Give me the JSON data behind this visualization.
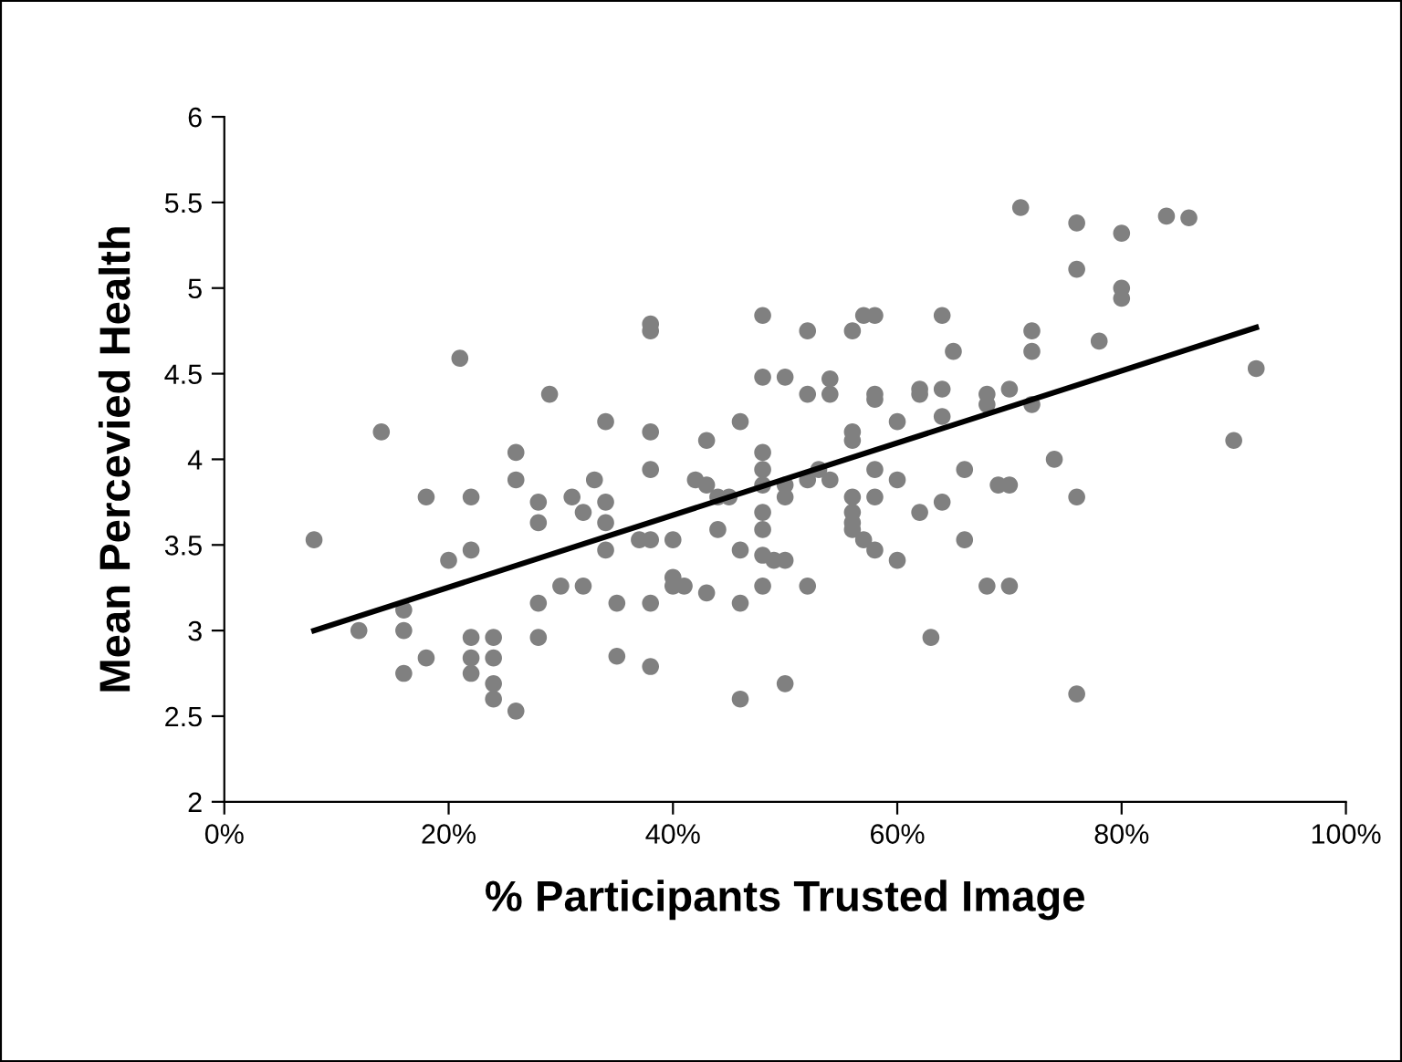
{
  "chart_data": {
    "type": "scatter",
    "xlabel": "% Participants Trusted Image",
    "ylabel": "Mean Percevied Health",
    "xlim": [
      0,
      100
    ],
    "ylim": [
      2,
      6
    ],
    "xticks": [
      {
        "value": 0,
        "label": "0%"
      },
      {
        "value": 20,
        "label": "20%"
      },
      {
        "value": 40,
        "label": "40%"
      },
      {
        "value": 60,
        "label": "60%"
      },
      {
        "value": 80,
        "label": "80%"
      },
      {
        "value": 100,
        "label": "100%"
      }
    ],
    "yticks": [
      2,
      2.5,
      3,
      3.5,
      4,
      4.5,
      5,
      5.5,
      6
    ],
    "grid": false,
    "legend": false,
    "series": [
      {
        "type": "scatter",
        "marker": "circle",
        "color": "#808080",
        "x": [
          8,
          12,
          14,
          16,
          16,
          16,
          18,
          18,
          20,
          21,
          22,
          22,
          22,
          22,
          22,
          24,
          24,
          24,
          24,
          26,
          26,
          26,
          28,
          28,
          28,
          28,
          29,
          30,
          31,
          32,
          32,
          33,
          34,
          34,
          34,
          34,
          35,
          35,
          37,
          38,
          38,
          38,
          38,
          38,
          38,
          38,
          40,
          40,
          40,
          41,
          42,
          43,
          43,
          43,
          44,
          44,
          45,
          46,
          46,
          46,
          46,
          48,
          48,
          48,
          48,
          48,
          48,
          48,
          48,
          48,
          49,
          50,
          50,
          50,
          50,
          50,
          52,
          52,
          52,
          52,
          53,
          54,
          54,
          54,
          56,
          56,
          56,
          56,
          56,
          56,
          56,
          57,
          57,
          58,
          58,
          58,
          58,
          58,
          58,
          60,
          60,
          60,
          62,
          62,
          62,
          63,
          64,
          64,
          64,
          64,
          65,
          66,
          66,
          68,
          68,
          68,
          69,
          70,
          70,
          70,
          71,
          72,
          72,
          72,
          74,
          76,
          76,
          76,
          76,
          78,
          80,
          80,
          80,
          84,
          86,
          90,
          92
        ],
        "values": [
          3.53,
          3.0,
          4.16,
          3.12,
          3.0,
          2.75,
          3.78,
          2.84,
          3.41,
          4.59,
          3.78,
          3.47,
          2.96,
          2.84,
          2.75,
          2.96,
          2.84,
          2.69,
          2.6,
          4.04,
          3.88,
          2.53,
          3.75,
          3.63,
          3.16,
          2.96,
          4.38,
          3.26,
          3.78,
          3.69,
          3.26,
          3.88,
          4.22,
          3.75,
          3.63,
          3.47,
          3.16,
          2.85,
          3.53,
          4.79,
          4.75,
          4.16,
          3.94,
          3.53,
          3.16,
          2.79,
          3.53,
          3.31,
          3.26,
          3.26,
          3.88,
          3.85,
          4.11,
          3.22,
          3.59,
          3.78,
          3.78,
          4.22,
          3.47,
          3.16,
          2.6,
          4.84,
          4.48,
          4.04,
          3.94,
          3.85,
          3.69,
          3.59,
          3.44,
          3.26,
          3.41,
          4.48,
          3.85,
          3.78,
          3.41,
          2.69,
          4.38,
          4.75,
          3.88,
          3.26,
          3.94,
          4.47,
          4.38,
          3.88,
          4.75,
          4.16,
          4.11,
          3.78,
          3.69,
          3.63,
          3.59,
          4.84,
          3.53,
          4.84,
          4.35,
          4.38,
          3.94,
          3.78,
          3.47,
          4.22,
          3.88,
          3.41,
          4.41,
          4.38,
          3.69,
          2.96,
          4.84,
          4.41,
          4.25,
          3.75,
          4.63,
          3.94,
          3.53,
          4.38,
          4.32,
          3.26,
          3.85,
          4.41,
          3.85,
          3.26,
          5.47,
          4.75,
          4.63,
          4.32,
          4.0,
          5.38,
          5.11,
          3.78,
          2.63,
          4.69,
          5.32,
          5.0,
          4.94,
          5.42,
          5.41,
          4.11,
          4.53
        ]
      },
      {
        "type": "line",
        "color": "#000000",
        "line_style": "solid",
        "x": [
          8,
          92
        ],
        "values": [
          3.0,
          4.77
        ]
      }
    ]
  }
}
